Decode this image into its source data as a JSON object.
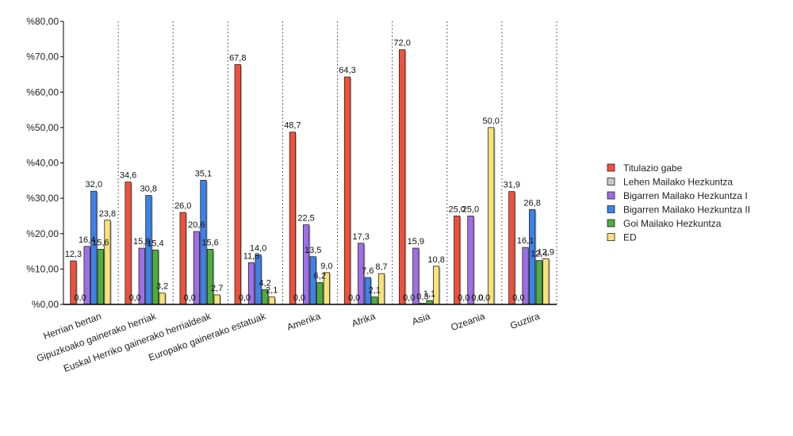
{
  "chart_data": {
    "type": "bar",
    "title": "",
    "xlabel": "",
    "ylabel": "",
    "ylim": [
      0,
      80
    ],
    "y_ticks": [
      "%0,00",
      "%10,00",
      "%20,00",
      "%30,00",
      "%40,00",
      "%50,00",
      "%60,00",
      "%70,00",
      "%80,00"
    ],
    "grid": "vertical-dotted",
    "legend_position": "right",
    "categories": [
      "Herrian bertan",
      "Gipuzkoako gainerako herriak",
      "Euskal Herriko gainerako herrialdeak",
      "Europako gainerako estatuak",
      "Amerika",
      "Afrika",
      "Asia",
      "Ozeania",
      "Guztira"
    ],
    "series": [
      {
        "name": "Titulazio gabe",
        "color": "#f0503a",
        "values": [
          12.3,
          34.6,
          26.0,
          67.8,
          48.7,
          64.3,
          72.0,
          25.0,
          31.9
        ],
        "labels": [
          "12,3",
          "34,6",
          "26,0",
          "67,8",
          "48,7",
          "64,3",
          "72,0",
          "25,0",
          "31,9"
        ]
      },
      {
        "name": "Lehen Mailako Hezkuntza",
        "color": "#c8c8c8",
        "values": [
          0,
          0,
          0,
          0,
          0,
          0,
          0,
          0,
          0
        ],
        "labels": [
          "0,0",
          "0,0",
          "0,0",
          "0,0",
          "0,0",
          "0,0",
          "0,0",
          "0,0",
          "0,0"
        ]
      },
      {
        "name": "Bigarren Mailako Hezkuntza I",
        "color": "#a06ee8",
        "values": [
          16.4,
          15.9,
          20.6,
          11.8,
          22.5,
          17.3,
          15.9,
          25.0,
          16.1
        ],
        "labels": [
          "16,4",
          "15,9",
          "20,6",
          "11,8",
          "22,5",
          "17,3",
          "15,9",
          "25,0",
          "16,1"
        ]
      },
      {
        "name": "Bigarren Mailako Hezkuntza II",
        "color": "#3c82e8",
        "values": [
          32.0,
          30.8,
          35.1,
          14.0,
          13.5,
          7.6,
          0.3,
          0.0,
          26.8
        ],
        "labels": [
          "32,0",
          "30,8",
          "35,1",
          "14,0",
          "13,5",
          "7,6",
          "0,3",
          "0,0",
          "26,8"
        ]
      },
      {
        "name": "Goi Mailako Hezkuntza",
        "color": "#4cae3c",
        "values": [
          15.6,
          15.4,
          15.6,
          4.2,
          6.2,
          2.1,
          1.1,
          0.0,
          12.4
        ],
        "labels": [
          "15,6",
          "15,4",
          "15,6",
          "4,2",
          "6,2",
          "2,1",
          "1,1",
          "0,0",
          "12,4"
        ]
      },
      {
        "name": "ED",
        "color": "#f8e27a",
        "values": [
          23.8,
          3.2,
          2.7,
          2.1,
          9.0,
          8.7,
          10.8,
          50.0,
          12.9
        ],
        "labels": [
          "23,8",
          "3,2",
          "2,7",
          "2,1",
          "9,0",
          "8,7",
          "10,8",
          "50,0",
          "12,9"
        ]
      }
    ]
  }
}
